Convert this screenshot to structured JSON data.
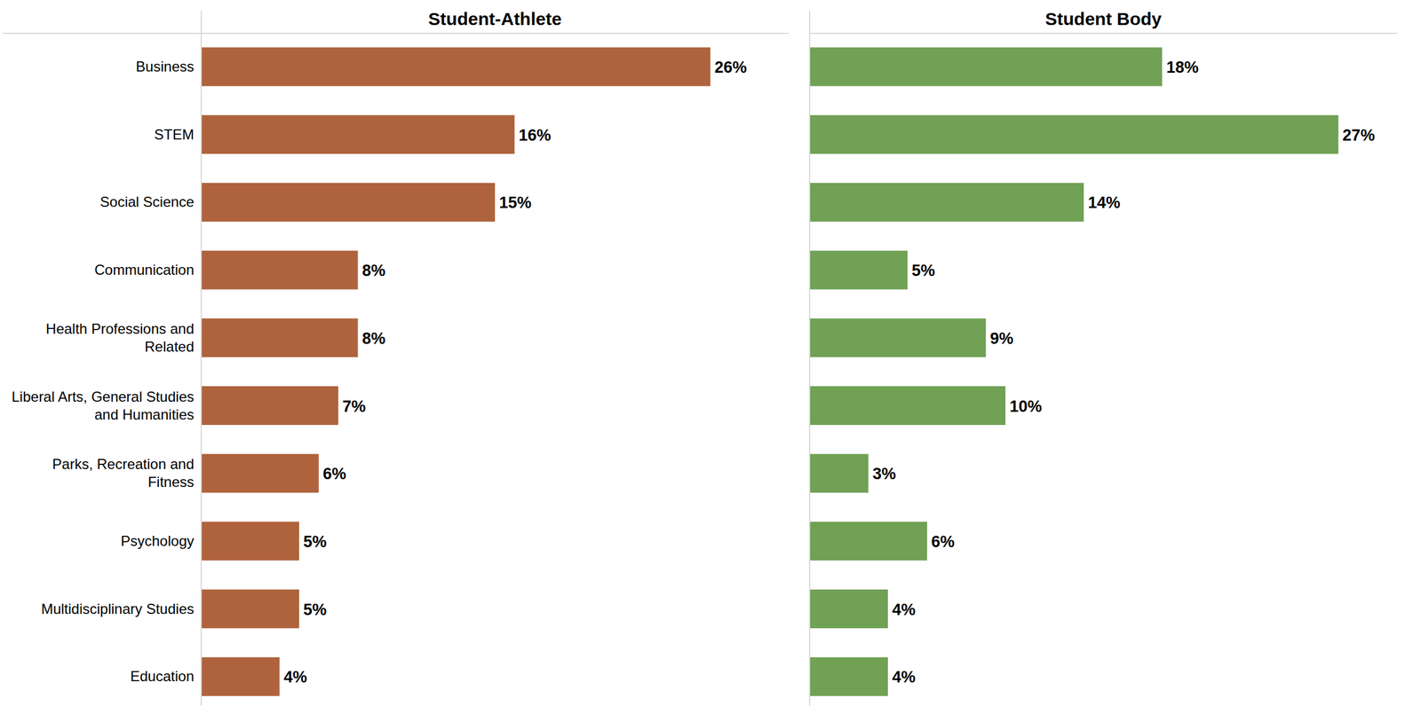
{
  "chart_data": [
    {
      "type": "bar",
      "orientation": "horizontal",
      "title": "Student-Athlete",
      "categories": [
        "Business",
        "STEM",
        "Social Science",
        "Communication",
        "Health Professions and Related",
        "Liberal Arts, General Studies and Humanities",
        "Parks, Recreation and Fitness",
        "Psychology",
        "Multidisciplinary Studies",
        "Education"
      ],
      "values": [
        26,
        16,
        15,
        8,
        8,
        7,
        6,
        5,
        5,
        4
      ],
      "value_labels": [
        "26%",
        "16%",
        "15%",
        "8%",
        "8%",
        "7%",
        "6%",
        "5%",
        "5%",
        "4%"
      ],
      "color": "#ae633d",
      "xlim": [
        0,
        30
      ],
      "data_labels": true,
      "grid": false,
      "tick_labels": "y"
    },
    {
      "type": "bar",
      "orientation": "horizontal",
      "title": "Student Body",
      "values": [
        18,
        27,
        14,
        5,
        9,
        10,
        3,
        6,
        4,
        4
      ],
      "value_labels": [
        "18%",
        "27%",
        "14%",
        "5%",
        "9%",
        "10%",
        "3%",
        "6%",
        "4%",
        "4%"
      ],
      "color": "#70a155",
      "xlim": [
        0,
        30
      ],
      "data_labels": true,
      "grid": false,
      "tick_labels": false
    }
  ]
}
